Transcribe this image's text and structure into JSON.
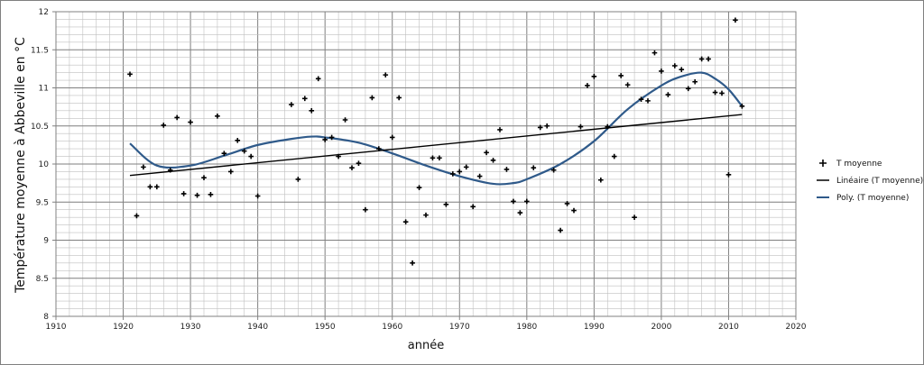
{
  "chart_data": {
    "type": "scatter",
    "title": "",
    "xlabel": "année",
    "ylabel": "Température moyenne à Abbeville en °C",
    "xlim": [
      1910,
      2020
    ],
    "ylim": [
      8,
      12
    ],
    "x_major_step": 10,
    "y_major_step": 0.5,
    "x_ticks": [
      "1910",
      "1920",
      "1930",
      "1940",
      "1950",
      "1960",
      "1970",
      "1980",
      "1990",
      "2000",
      "2010",
      "2020"
    ],
    "y_ticks": [
      "8",
      "8.5",
      "9",
      "9.5",
      "10",
      "10.5",
      "11",
      "11.5",
      "12"
    ],
    "grid": true,
    "legend_position": "right",
    "colors": {
      "points": "#000000",
      "linear": "#000000",
      "poly": "#2f5a8a",
      "minor_grid": "#bfbfbf",
      "major_grid": "#7f7f7f"
    },
    "legend": [
      {
        "key": "points",
        "label": "T moyenne"
      },
      {
        "key": "linear",
        "label": "Linéaire (T moyenne)"
      },
      {
        "key": "poly",
        "label": "Poly. (T moyenne)"
      }
    ],
    "series": [
      {
        "name": "T moyenne",
        "marker": "cross",
        "points": [
          [
            1921,
            11.18
          ],
          [
            1922,
            9.32
          ],
          [
            1923,
            9.96
          ],
          [
            1924,
            9.7
          ],
          [
            1925,
            9.7
          ],
          [
            1926,
            10.51
          ],
          [
            1927,
            9.92
          ],
          [
            1928,
            10.61
          ],
          [
            1929,
            9.61
          ],
          [
            1930,
            10.55
          ],
          [
            1931,
            9.59
          ],
          [
            1932,
            9.82
          ],
          [
            1933,
            9.6
          ],
          [
            1934,
            10.63
          ],
          [
            1935,
            10.14
          ],
          [
            1936,
            9.9
          ],
          [
            1937,
            10.31
          ],
          [
            1938,
            10.17
          ],
          [
            1939,
            10.1
          ],
          [
            1940,
            9.58
          ],
          [
            1945,
            10.78
          ],
          [
            1946,
            9.8
          ],
          [
            1947,
            10.86
          ],
          [
            1948,
            10.7
          ],
          [
            1949,
            11.12
          ],
          [
            1950,
            10.32
          ],
          [
            1951,
            10.35
          ],
          [
            1952,
            10.1
          ],
          [
            1953,
            10.58
          ],
          [
            1954,
            9.95
          ],
          [
            1955,
            10.01
          ],
          [
            1956,
            9.4
          ],
          [
            1957,
            10.87
          ],
          [
            1958,
            10.2
          ],
          [
            1959,
            11.17
          ],
          [
            1960,
            10.35
          ],
          [
            1961,
            10.87
          ],
          [
            1962,
            9.24
          ],
          [
            1963,
            8.7
          ],
          [
            1964,
            9.69
          ],
          [
            1965,
            9.33
          ],
          [
            1966,
            10.08
          ],
          [
            1967,
            10.08
          ],
          [
            1968,
            9.47
          ],
          [
            1969,
            9.87
          ],
          [
            1970,
            9.9
          ],
          [
            1971,
            9.96
          ],
          [
            1972,
            9.44
          ],
          [
            1973,
            9.84
          ],
          [
            1974,
            10.15
          ],
          [
            1975,
            10.05
          ],
          [
            1976,
            10.45
          ],
          [
            1977,
            9.93
          ],
          [
            1978,
            9.51
          ],
          [
            1979,
            9.36
          ],
          [
            1980,
            9.51
          ],
          [
            1981,
            9.95
          ],
          [
            1982,
            10.48
          ],
          [
            1983,
            10.5
          ],
          [
            1984,
            9.92
          ],
          [
            1985,
            9.13
          ],
          [
            1986,
            9.48
          ],
          [
            1987,
            9.39
          ],
          [
            1988,
            10.49
          ],
          [
            1989,
            11.03
          ],
          [
            1990,
            11.15
          ],
          [
            1991,
            9.79
          ],
          [
            1992,
            10.49
          ],
          [
            1993,
            10.1
          ],
          [
            1994,
            11.16
          ],
          [
            1995,
            11.04
          ],
          [
            1996,
            9.3
          ],
          [
            1997,
            10.85
          ],
          [
            1998,
            10.83
          ],
          [
            1999,
            11.46
          ],
          [
            2000,
            11.22
          ],
          [
            2001,
            10.91
          ],
          [
            2002,
            11.29
          ],
          [
            2003,
            11.24
          ],
          [
            2004,
            10.99
          ],
          [
            2005,
            11.08
          ],
          [
            2006,
            11.38
          ],
          [
            2007,
            11.38
          ],
          [
            2008,
            10.94
          ],
          [
            2009,
            10.93
          ],
          [
            2010,
            9.86
          ],
          [
            2011,
            11.89
          ],
          [
            2012,
            10.76
          ]
        ]
      },
      {
        "name": "Linéaire (T moyenne)",
        "marker": "line",
        "points": [
          [
            1921,
            9.85
          ],
          [
            2012,
            10.65
          ]
        ]
      },
      {
        "name": "Poly. (T moyenne)",
        "marker": "smooth",
        "points": [
          [
            1921,
            10.27
          ],
          [
            1925,
            9.98
          ],
          [
            1930,
            9.98
          ],
          [
            1935,
            10.11
          ],
          [
            1940,
            10.25
          ],
          [
            1945,
            10.33
          ],
          [
            1948,
            10.36
          ],
          [
            1950,
            10.35
          ],
          [
            1955,
            10.28
          ],
          [
            1960,
            10.14
          ],
          [
            1965,
            9.98
          ],
          [
            1970,
            9.84
          ],
          [
            1975,
            9.74
          ],
          [
            1978,
            9.75
          ],
          [
            1980,
            9.8
          ],
          [
            1985,
            10.0
          ],
          [
            1990,
            10.3
          ],
          [
            1995,
            10.72
          ],
          [
            2000,
            11.03
          ],
          [
            2003,
            11.15
          ],
          [
            2006,
            11.2
          ],
          [
            2008,
            11.12
          ],
          [
            2010,
            10.98
          ],
          [
            2012,
            10.76
          ]
        ]
      }
    ]
  }
}
